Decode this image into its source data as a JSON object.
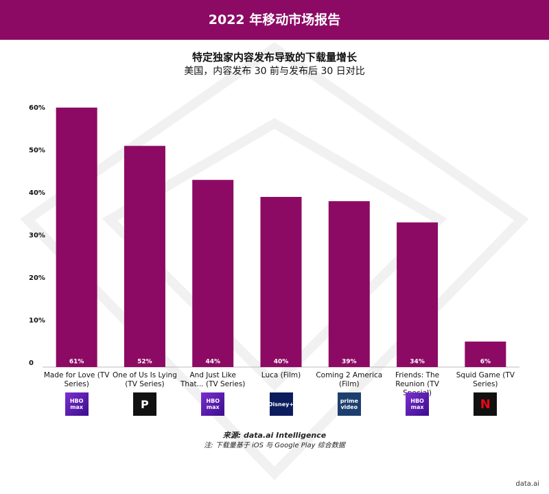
{
  "header": {
    "title": "2022 年移动市场报告"
  },
  "chart_data": {
    "type": "bar",
    "title": "特定独家内容发布导致的下载量增长",
    "subtitle": "美国，内容发布 30 前与发布后 30 日对比",
    "categories": [
      "Made for Love (TV Series)",
      "One of Us Is Lying (TV Series)",
      "And Just Like That... (TV Series)",
      "Luca (Film)",
      "Coming 2 America (Film)",
      "Friends: The Reunion (TV Special)",
      "Squid Game (TV Series)"
    ],
    "values": [
      61,
      52,
      44,
      40,
      39,
      34,
      6
    ],
    "value_labels": [
      "61%",
      "52%",
      "44%",
      "40%",
      "39%",
      "34%",
      "6%"
    ],
    "color": "#8c0a64",
    "ylim": [
      0,
      60
    ],
    "yticks": [
      0,
      {
        "value": 10,
        "label": "10%"
      },
      {
        "value": 20,
        "label": "20%"
      },
      {
        "value": 30,
        "label": "30%"
      },
      {
        "value": 40,
        "label": "40%"
      },
      {
        "value": 50,
        "label": "50%"
      },
      {
        "value": 60,
        "label": "60%"
      }
    ],
    "grid": false
  },
  "logos": [
    "HBO max",
    "P",
    "HBO max",
    "Disney+",
    "prime video",
    "HBO max",
    "N"
  ],
  "footer": {
    "source": "来源: data.ai Intelligence",
    "note": "注: 下载量基于 iOS 与 Google Play 综合数据",
    "brand": "data.ai"
  }
}
